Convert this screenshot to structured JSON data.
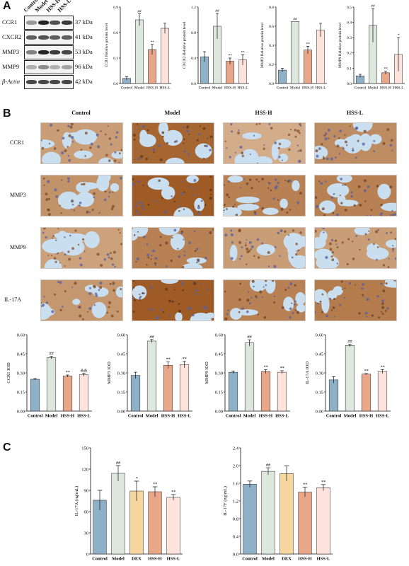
{
  "panels": {
    "A": "A",
    "B": "B",
    "C": "C"
  },
  "western_blot": {
    "lanes": [
      "Control",
      "Model",
      "HSS-H",
      "HSS-L"
    ],
    "rows": [
      {
        "protein": "CCR1",
        "kda": "37 kDa",
        "intensity": [
          0.45,
          0.95,
          0.75,
          0.85
        ]
      },
      {
        "protein": "CXCR2",
        "kda": "41 kDa",
        "intensity": [
          0.7,
          0.75,
          0.7,
          0.7
        ]
      },
      {
        "protein": "MMP3",
        "kda": "53 kDa",
        "intensity": [
          0.55,
          0.95,
          0.85,
          0.8
        ]
      },
      {
        "protein": "MMP9",
        "kda": "96 kDa",
        "intensity": [
          0.35,
          0.5,
          0.35,
          0.4
        ]
      },
      {
        "protein": "β-Actin",
        "kda": "42 kDa",
        "intensity": [
          0.8,
          0.8,
          0.8,
          0.8
        ]
      }
    ]
  },
  "ihc": {
    "columns": [
      "Control",
      "Model",
      "HSS-H",
      "HSS-L"
    ],
    "rows": [
      "CCR1",
      "MMP3",
      "MMP9",
      "IL-17A"
    ]
  },
  "colors": {
    "control": "#8fb1c8",
    "model": "#dde7dd",
    "dex": "#f7d79f",
    "hssh": "#e9a78a",
    "hssl": "#fde3dc",
    "tissue_bg": "#c9dff0",
    "tissue_stain_light": "#d9b99a",
    "tissue_stain_dark": "#a35a2f"
  },
  "chart_data": [
    {
      "type": "bar",
      "ylabel": "CCR1 Relative protein level",
      "categories": [
        "Control",
        "Model",
        "HSS-H",
        "HSS-L"
      ],
      "values": [
        0.06,
        0.75,
        0.4,
        0.65
      ],
      "errors": [
        0.02,
        0.07,
        0.06,
        0.06
      ],
      "ylim": [
        0,
        0.9
      ],
      "yticks": [
        "0.0",
        "0.3",
        "0.6",
        "0.9"
      ],
      "sig": [
        "",
        "##",
        "**",
        ""
      ]
    },
    {
      "type": "bar",
      "ylabel": "CXCR2 Relative protein level",
      "categories": [
        "Control",
        "Model",
        "HSS-H",
        "HSS-L"
      ],
      "values": [
        0.42,
        0.9,
        0.35,
        0.37
      ],
      "errors": [
        0.08,
        0.2,
        0.05,
        0.08
      ],
      "ylim": [
        0,
        1.2
      ],
      "yticks": [
        "0.0",
        "0.4",
        "0.8",
        "1.2"
      ],
      "sig": [
        "",
        "##",
        "**",
        "**"
      ]
    },
    {
      "type": "bar",
      "ylabel": "MMP3 Relative protein level",
      "categories": [
        "Control",
        "Model",
        "HSS-H",
        "HSS-L"
      ],
      "values": [
        0.14,
        0.65,
        0.35,
        0.56
      ],
      "errors": [
        0.02,
        0.0,
        0.04,
        0.07
      ],
      "ylim": [
        0,
        0.8
      ],
      "yticks": [
        "0.0",
        "0.2",
        "0.4",
        "0.6",
        "0.8"
      ],
      "sig": [
        "",
        "##",
        "**",
        ""
      ]
    },
    {
      "type": "bar",
      "ylabel": "MMP9 Relative protein level",
      "categories": [
        "Control",
        "Model",
        "HSS-H",
        "HSS-L"
      ],
      "values": [
        0.05,
        0.38,
        0.07,
        0.19
      ],
      "errors": [
        0.01,
        0.11,
        0.01,
        0.11
      ],
      "ylim": [
        0,
        0.5
      ],
      "yticks": [
        "0.0",
        "0.1",
        "0.2",
        "0.3",
        "0.4",
        "0.5"
      ],
      "sig": [
        "",
        "##",
        "**",
        "*"
      ]
    },
    {
      "type": "bar",
      "ylabel": "CCR1 IOD",
      "categories": [
        "Control",
        "Model",
        "HSS-H",
        "HSS-L"
      ],
      "values": [
        0.25,
        0.42,
        0.275,
        0.285
      ],
      "errors": [
        0.005,
        0.01,
        0.008,
        0.012
      ],
      "ylim": [
        0,
        0.6
      ],
      "yticks": [
        "0.00",
        "0.15",
        "0.30",
        "0.45",
        "0.60"
      ],
      "sig": [
        "",
        "##",
        "**",
        "&&"
      ]
    },
    {
      "type": "bar",
      "ylabel": "MMP3 IOD",
      "categories": [
        "Control",
        "Model",
        "HSS-H",
        "HSS-L"
      ],
      "values": [
        0.28,
        0.55,
        0.36,
        0.365
      ],
      "errors": [
        0.025,
        0.012,
        0.025,
        0.025
      ],
      "ylim": [
        0,
        0.6
      ],
      "yticks": [
        "0.00",
        "0.15",
        "0.30",
        "0.45",
        "0.60"
      ],
      "sig": [
        "",
        "##",
        "**",
        "**"
      ]
    },
    {
      "type": "bar",
      "ylabel": "MMP9 IOD",
      "categories": [
        "Control",
        "Model",
        "HSS-H",
        "HSS-L"
      ],
      "values": [
        0.305,
        0.535,
        0.31,
        0.305
      ],
      "errors": [
        0.01,
        0.025,
        0.015,
        0.012
      ],
      "ylim": [
        0,
        0.6
      ],
      "yticks": [
        "0.00",
        "0.15",
        "0.30",
        "0.45",
        "0.60"
      ],
      "sig": [
        "",
        "##",
        "**",
        "**"
      ]
    },
    {
      "type": "bar",
      "ylabel": "IL-17A IOD",
      "categories": [
        "Control",
        "Model",
        "HSS-H",
        "HSS-L"
      ],
      "values": [
        0.245,
        0.515,
        0.29,
        0.31
      ],
      "errors": [
        0.025,
        0.01,
        0.004,
        0.015
      ],
      "ylim": [
        0,
        0.6
      ],
      "yticks": [
        "0.00",
        "0.15",
        "0.30",
        "0.45",
        "0.60"
      ],
      "sig": [
        "",
        "##",
        "**",
        "**"
      ]
    },
    {
      "type": "bar",
      "ylabel": "IL-17A (ng/mL)",
      "categories": [
        "Control",
        "Model",
        "DEX",
        "HSS-H",
        "HSS-L"
      ],
      "values": [
        76,
        114,
        89,
        88,
        80
      ],
      "errors": [
        14,
        11,
        14,
        7,
        4
      ],
      "ylim": [
        0,
        150
      ],
      "yticks": [
        "0",
        "30",
        "60",
        "90",
        "120",
        "150"
      ],
      "sig": [
        "",
        "##",
        "*",
        "**",
        "**"
      ]
    },
    {
      "type": "bar",
      "ylabel": "IL-17F (ng/mL)",
      "categories": [
        "Control",
        "Model",
        "DEX",
        "HSS-H",
        "HSS-L"
      ],
      "values": [
        1.58,
        1.87,
        1.82,
        1.4,
        1.5
      ],
      "errors": [
        0.07,
        0.08,
        0.17,
        0.11,
        0.07
      ],
      "ylim": [
        0,
        2.4
      ],
      "yticks": [
        "0.0",
        "0.4",
        "0.8",
        "1.2",
        "1.6",
        "2.0",
        "2.4"
      ],
      "sig": [
        "",
        "##",
        "",
        "**",
        "**"
      ]
    }
  ]
}
